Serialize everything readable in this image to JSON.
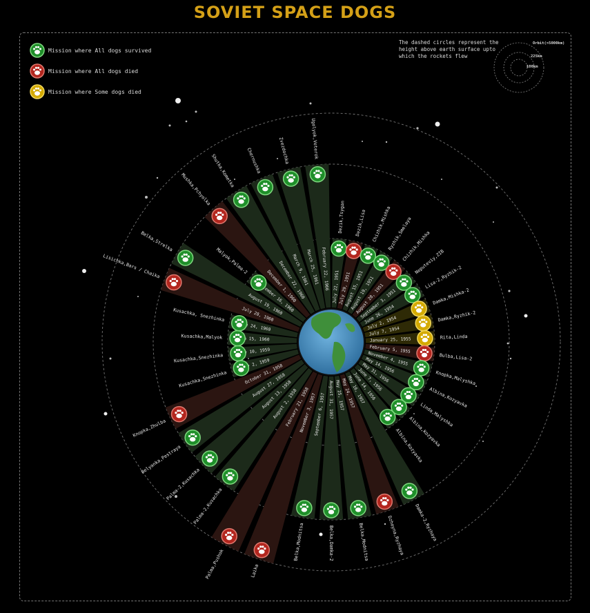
{
  "title": "SOVIET SPACE DOGS",
  "legend": [
    {
      "label": "Mission where All dogs survived",
      "color": "#1f8f2a",
      "key": "survived"
    },
    {
      "label": "Mission where All dogs died",
      "color": "#b3261e",
      "key": "died"
    },
    {
      "label": "Mission where Some dogs died",
      "color": "#d4aa00",
      "key": "some"
    }
  ],
  "note": "The dashed circles represent the height above earth surface upto which the rockets flew",
  "orbit_key": {
    "outer": "Orbit(>5000km)",
    "middle": "225km",
    "inner": "100km"
  },
  "colors": {
    "survived_fill": "#1c2a1a",
    "died_fill": "#2b1511",
    "some_fill": "#2e2a06",
    "title": "#d4a017"
  },
  "icons": {
    "badge": "paw-print-icon",
    "earth": "earth-globe-icon"
  },
  "chart_data": {
    "type": "radial-bar",
    "title": "SOVIET SPACE DOGS",
    "height_levels": [
      "100km",
      "225km",
      "Orbit(>5000km)"
    ],
    "missions": [
      {
        "date": "July 22, 1951",
        "dogs": "Dezik,Tsygan",
        "outcome": "survived",
        "altitude": "100km"
      },
      {
        "date": "July 29, 1951",
        "dogs": "Dezik,Lisa",
        "outcome": "died",
        "altitude": "100km"
      },
      {
        "date": "August 15, 1951",
        "dogs": "Chizhik,Mishka",
        "outcome": "survived",
        "altitude": "100km"
      },
      {
        "date": "August 19, 1951",
        "dogs": "Ryzhik,Smelaya",
        "outcome": "survived",
        "altitude": "100km"
      },
      {
        "date": "August 28, 1951",
        "dogs": "Chizhik,Mishka",
        "outcome": "died",
        "altitude": "100km"
      },
      {
        "date": "September 3, 1951",
        "dogs": "Neputeviy,ZIB",
        "outcome": "survived",
        "altitude": "100km"
      },
      {
        "date": "June 26, 1954",
        "dogs": "Lisa-2,Ryzhik-2",
        "outcome": "survived",
        "altitude": "100km"
      },
      {
        "date": "July 2, 1954",
        "dogs": "Damka,Mishka-2",
        "outcome": "some",
        "altitude": "100km"
      },
      {
        "date": "July 7, 1954",
        "dogs": "Damka,Ryzhik-2",
        "outcome": "some",
        "altitude": "100km"
      },
      {
        "date": "January 25, 1955",
        "dogs": "Rita,Linda",
        "outcome": "some",
        "altitude": "100km"
      },
      {
        "date": "February 5, 1955",
        "dogs": "Bulba,Lisa-2",
        "outcome": "died",
        "altitude": "100km"
      },
      {
        "date": "November 4, 1955",
        "dogs": "Knopka,Malyshka",
        "outcome": "survived",
        "altitude": "100km"
      },
      {
        "date": "May 14, 1956",
        "dogs": "Albina,Kozyavka",
        "outcome": "survived",
        "altitude": "100km"
      },
      {
        "date": "May 31, 1956",
        "dogs": "Linda,Malyshka",
        "outcome": "survived",
        "altitude": "100km"
      },
      {
        "date": "June 7, 1956",
        "dogs": "Albina,Kozyavka",
        "outcome": "survived",
        "altitude": "100km"
      },
      {
        "date": "June 14, 1956",
        "dogs": "Albina,Kozyavka",
        "outcome": "survived",
        "altitude": "100km"
      },
      {
        "date": "May 16, 1957",
        "dogs": "Damka-2,Ryzhaya",
        "outcome": "survived",
        "altitude": "225km"
      },
      {
        "date": "May 24, 1957",
        "dogs": "Dzhoyna,Ryzhaya",
        "outcome": "died",
        "altitude": "225km"
      },
      {
        "date": "May 25, 1957",
        "dogs": "Belka,Modnitsa",
        "outcome": "survived",
        "altitude": "225km"
      },
      {
        "date": "August 31, 1957",
        "dogs": "Belka,Damka-2",
        "outcome": "survived",
        "altitude": "225km"
      },
      {
        "date": "September 6, 1957",
        "dogs": "Belka,Modnitsa",
        "outcome": "survived",
        "altitude": "225km"
      },
      {
        "date": "November 3, 1957",
        "dogs": "Laika",
        "outcome": "died",
        "altitude": "Orbit(>5000km)"
      },
      {
        "date": "February 21, 1958",
        "dogs": "Palma,Pushok",
        "outcome": "died",
        "altitude": "Orbit(>5000km)"
      },
      {
        "date": "August 2, 1958",
        "dogs": "Palma-2,Kusachka",
        "outcome": "survived",
        "altitude": "225km"
      },
      {
        "date": "August 13, 1958",
        "dogs": "Palma-2,Kusachka",
        "outcome": "survived",
        "altitude": "225km"
      },
      {
        "date": "August 27, 1958",
        "dogs": "Belyanka,Pestraya",
        "outcome": "survived",
        "altitude": "225km"
      },
      {
        "date": "October 31, 1958",
        "dogs": "Knopka,Zhulba",
        "outcome": "died",
        "altitude": "225km"
      },
      {
        "date": "July 2, 1959",
        "dogs": "Kusachka,Snezhinka",
        "outcome": "survived",
        "altitude": "100km"
      },
      {
        "date": "July 10, 1959",
        "dogs": "Kusachka,Snezhinka",
        "outcome": "survived",
        "altitude": "100km"
      },
      {
        "date": "June 15, 1960",
        "dogs": "Kusachka,Malyok",
        "outcome": "survived",
        "altitude": "100km"
      },
      {
        "date": "June 24, 1960",
        "dogs": "Kusachka, Snezhinka",
        "outcome": "survived",
        "altitude": "100km"
      },
      {
        "date": "July 28, 1960",
        "dogs": "Lisichka,Bars / Chaika",
        "outcome": "died",
        "altitude": "225km"
      },
      {
        "date": "August 19, 1960",
        "dogs": "Belka,Strelka",
        "outcome": "survived",
        "altitude": "225km"
      },
      {
        "date": "September 16, 1960",
        "dogs": "Malyok,Palma-2",
        "outcome": "survived",
        "altitude": "100km"
      },
      {
        "date": "December 1, 1960",
        "dogs": "Mushka,Pchyolka",
        "outcome": "died",
        "altitude": "225km"
      },
      {
        "date": "December 22, 1960",
        "dogs": "Shutka,Kometka",
        "outcome": "survived",
        "altitude": "225km"
      },
      {
        "date": "March 9, 1961",
        "dogs": "Chernushka",
        "outcome": "survived",
        "altitude": "225km"
      },
      {
        "date": "March 25, 1961",
        "dogs": "Zvezdochka",
        "outcome": "survived",
        "altitude": "225km"
      },
      {
        "date": "February 22, 1966",
        "dogs": "Ugolyok,Veterok",
        "outcome": "survived",
        "altitude": "225km"
      }
    ]
  }
}
